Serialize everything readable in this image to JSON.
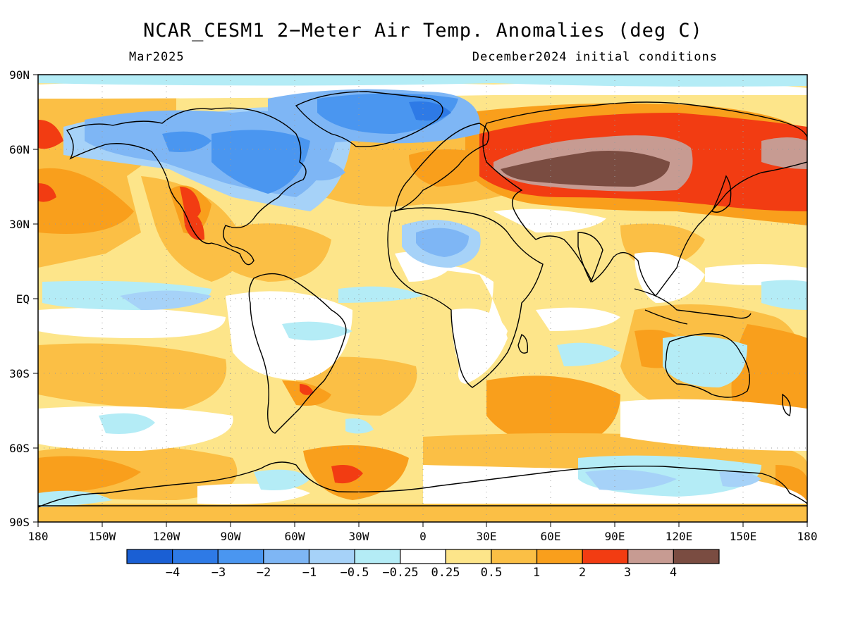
{
  "header": {
    "title": "NCAR_CESM1 2−Meter Air Temp. Anomalies (deg C)",
    "valid_month": "Mar2025",
    "init_label": "December2024 initial conditions"
  },
  "axes": {
    "lat_labels": [
      "90N",
      "60N",
      "30N",
      "EQ",
      "30S",
      "60S",
      "90S"
    ],
    "lon_labels": [
      "180",
      "150W",
      "120W",
      "90W",
      "60W",
      "30W",
      "0",
      "30E",
      "60E",
      "90E",
      "120E",
      "150E",
      "180"
    ]
  },
  "colorbar": {
    "colors": [
      "#1a5fd4",
      "#2e7ae6",
      "#4a96f0",
      "#7eb6f5",
      "#a6d2f8",
      "#b4ecf6",
      "#ffffff",
      "#fde58a",
      "#fbbf45",
      "#f99f1c",
      "#f23c12",
      "#c79b92",
      "#7a4c41"
    ],
    "labels": [
      "−4",
      "−3",
      "−2",
      "−1",
      "−0.5",
      "−0.25",
      "0.25",
      "0.5",
      "1",
      "2",
      "3",
      "4"
    ]
  }
}
